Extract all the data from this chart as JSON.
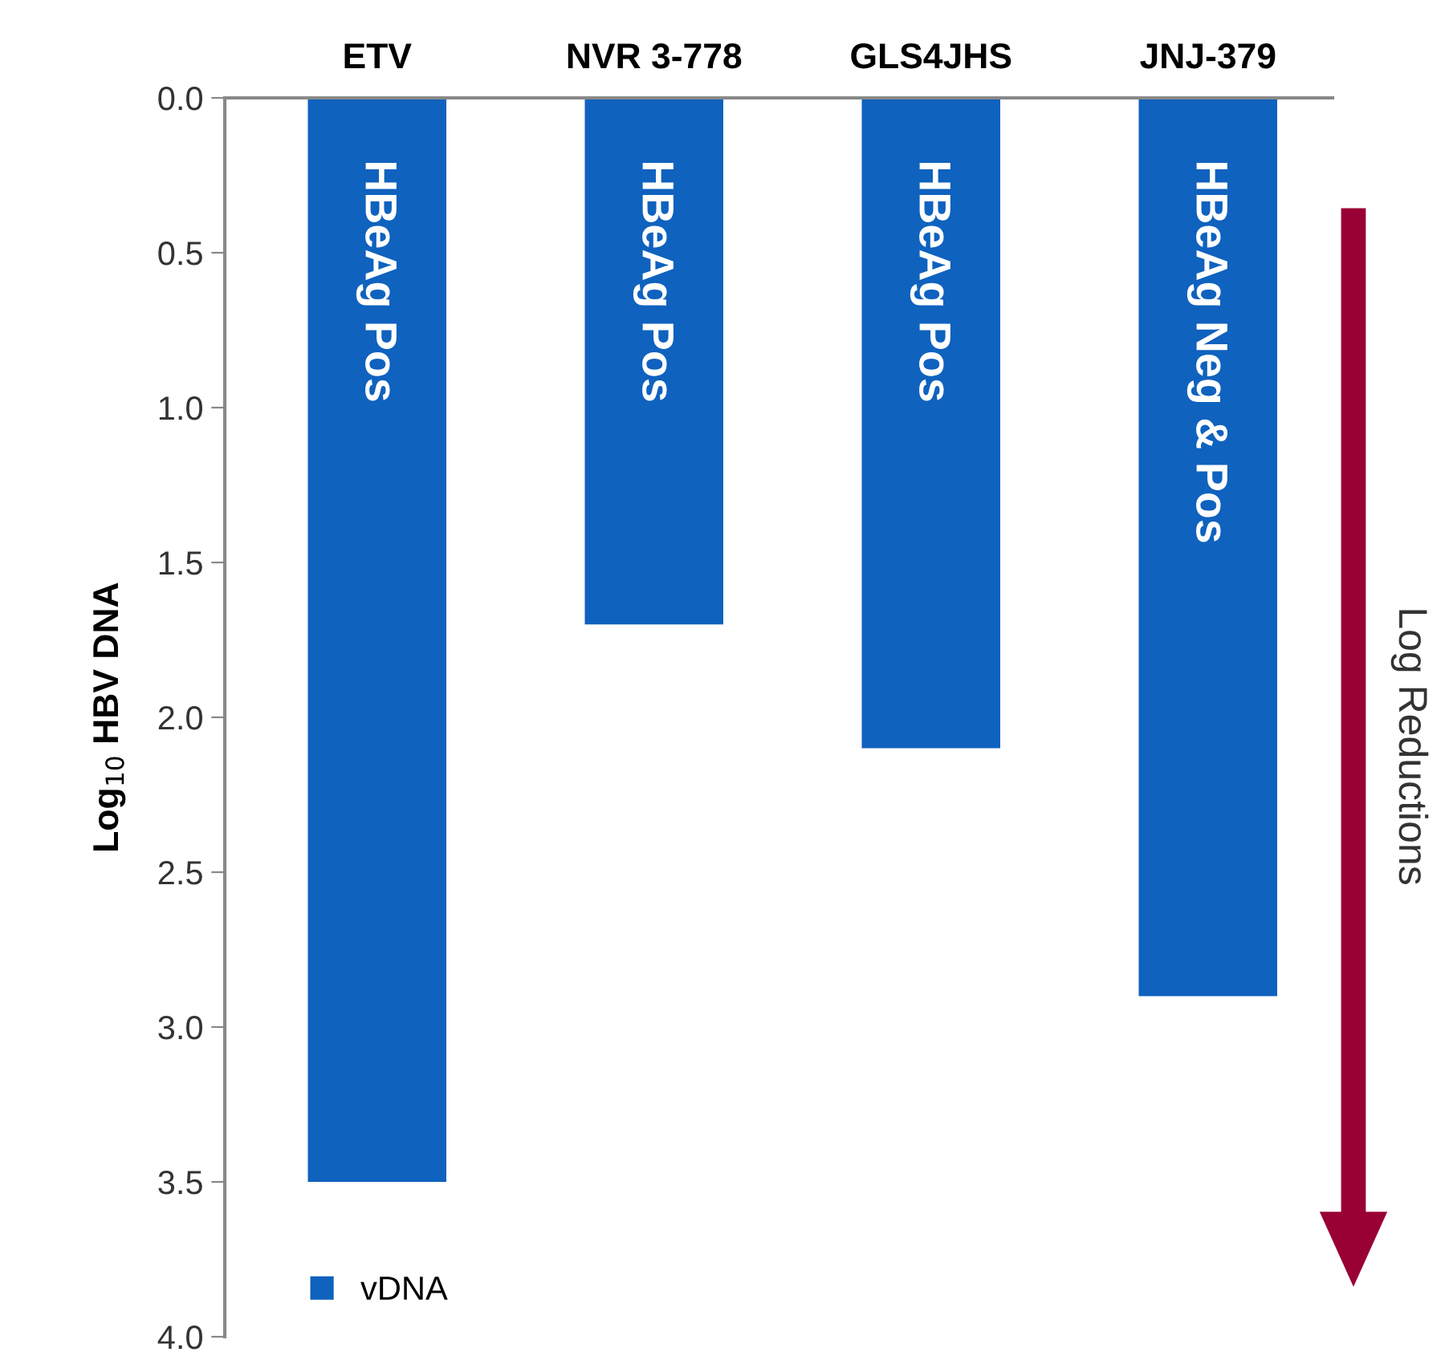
{
  "chart_data": {
    "type": "bar",
    "categories": [
      "ETV",
      "NVR 3-778",
      "GLS4JHS",
      "JNJ-379"
    ],
    "series": [
      {
        "name": "vDNA",
        "color": "#0f62be",
        "values": [
          3.5,
          1.7,
          2.1,
          2.9
        ]
      }
    ],
    "ylabel": "Log$_{10}$ HBV DNA",
    "ylim": [
      4.0,
      0.0
    ],
    "yticks": [
      {
        "value": 0,
        "label": "0.0"
      },
      {
        "value": 0.5,
        "label": "0.5"
      },
      {
        "value": 1,
        "label": "1.0"
      },
      {
        "value": 1.5,
        "label": "1.5"
      },
      {
        "value": 2,
        "label": "2.0"
      },
      {
        "value": 2.5,
        "label": "2.5"
      },
      {
        "value": 3,
        "label": "3.0"
      },
      {
        "value": 3.5,
        "label": "3.5"
      },
      {
        "value": 4,
        "label": "4.0"
      }
    ],
    "annotations": [
      "HBeAg Pos",
      "HBeAg Pos",
      "HBeAg Pos",
      "HBeAg Neg & Pos",
      "Log Reductions"
    ],
    "legend": "bottom left",
    "grid": false
  }
}
